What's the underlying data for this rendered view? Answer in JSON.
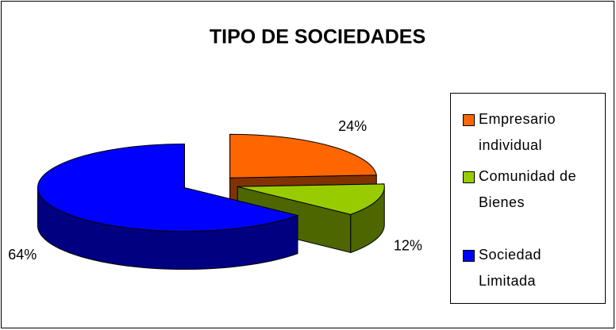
{
  "chart_data": {
    "type": "pie3d",
    "title": "TIPO DE SOCIEDADES",
    "categories": [
      "Empresario individual",
      "Comunidad de Bienes",
      "Sociedad Limitada"
    ],
    "values": [
      24,
      12,
      64
    ],
    "value_labels": [
      "24%",
      "12%",
      "64%"
    ],
    "colors": [
      "#ff6600",
      "#99cc00",
      "#0000ff"
    ],
    "legend": "right"
  }
}
